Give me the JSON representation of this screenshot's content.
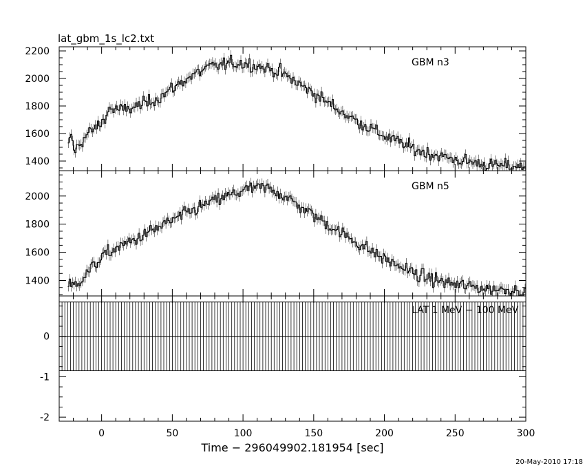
{
  "chart_data": {
    "type": "line",
    "title": "lat_gbm_1s_lc2.txt",
    "xlabel": "Time − 296049902.181954 [sec]",
    "timestamp": "20-May-2010 17:18",
    "xlim": [
      -30,
      300
    ],
    "xticks": [
      0,
      50,
      100,
      150,
      200,
      250,
      300
    ],
    "panels": [
      {
        "name": "GBM n3",
        "ylim": [
          1330,
          2230
        ],
        "yticks": [
          1400,
          1600,
          1800,
          2000,
          2200
        ],
        "noise": 40,
        "profile": [
          {
            "x": -24,
            "y": 1500
          },
          {
            "x": -22,
            "y": 1600
          },
          {
            "x": -20,
            "y": 1470
          },
          {
            "x": -10,
            "y": 1600
          },
          {
            "x": 0,
            "y": 1680
          },
          {
            "x": 5,
            "y": 1780
          },
          {
            "x": 15,
            "y": 1770
          },
          {
            "x": 25,
            "y": 1800
          },
          {
            "x": 40,
            "y": 1860
          },
          {
            "x": 60,
            "y": 2000
          },
          {
            "x": 75,
            "y": 2080
          },
          {
            "x": 90,
            "y": 2110
          },
          {
            "x": 100,
            "y": 2110
          },
          {
            "x": 110,
            "y": 2090
          },
          {
            "x": 125,
            "y": 2050
          },
          {
            "x": 150,
            "y": 1890
          },
          {
            "x": 175,
            "y": 1720
          },
          {
            "x": 200,
            "y": 1580
          },
          {
            "x": 225,
            "y": 1470
          },
          {
            "x": 250,
            "y": 1410
          },
          {
            "x": 275,
            "y": 1370
          },
          {
            "x": 300,
            "y": 1360
          }
        ]
      },
      {
        "name": "GBM n5",
        "ylim": [
          1290,
          2180
        ],
        "yticks": [
          1400,
          1600,
          1800,
          2000
        ],
        "noise": 40,
        "profile": [
          {
            "x": -24,
            "y": 1370
          },
          {
            "x": -20,
            "y": 1360
          },
          {
            "x": -10,
            "y": 1460
          },
          {
            "x": 0,
            "y": 1570
          },
          {
            "x": 10,
            "y": 1630
          },
          {
            "x": 25,
            "y": 1700
          },
          {
            "x": 50,
            "y": 1830
          },
          {
            "x": 75,
            "y": 1950
          },
          {
            "x": 100,
            "y": 2040
          },
          {
            "x": 110,
            "y": 2060
          },
          {
            "x": 120,
            "y": 2050
          },
          {
            "x": 130,
            "y": 1990
          },
          {
            "x": 150,
            "y": 1860
          },
          {
            "x": 175,
            "y": 1700
          },
          {
            "x": 200,
            "y": 1550
          },
          {
            "x": 225,
            "y": 1430
          },
          {
            "x": 250,
            "y": 1370
          },
          {
            "x": 275,
            "y": 1340
          },
          {
            "x": 300,
            "y": 1330
          }
        ]
      },
      {
        "name": "LAT 1 MeV − 100 MeV",
        "ylim": [
          -2.1,
          1.0
        ],
        "yticks": [
          -2,
          -1,
          0
        ],
        "bin_step": 2,
        "band": [
          -0.85,
          0.85
        ]
      }
    ]
  }
}
